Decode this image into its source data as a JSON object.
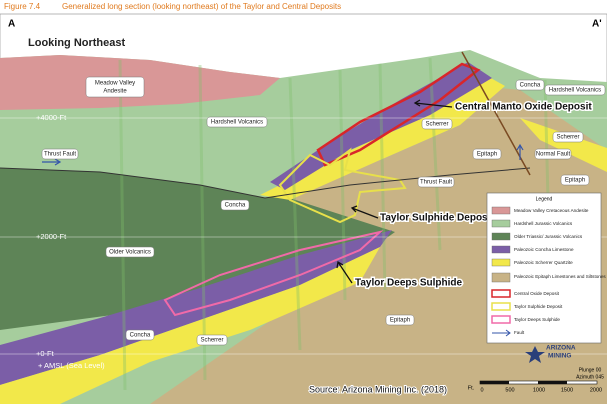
{
  "header": {
    "figure": "Figure 7.4",
    "title": "Generalized long section (looking northeast) of the Taylor and Central Deposits"
  },
  "section": {
    "corner_left": "A",
    "corner_right": "A'",
    "view": "Looking Northeast",
    "elevations": [
      "+4000-Ft",
      "+2000-Ft",
      "+0-Ft",
      "+ AMSL (Sea Level)"
    ],
    "units": [
      [
        "Meadow Valley",
        "Andesite"
      ],
      "Hardshell Volcanics",
      "Hardshell Volcanics",
      "Concha",
      "Scherrer",
      "Scherrer",
      "Normal Fault",
      "Epitaph",
      "Epitaph",
      "Thrust Fault",
      "Thrust Fault",
      "Concha",
      "Older Volcanics",
      "Concha",
      "Scherrer",
      "Epitaph"
    ],
    "deposits": [
      "Central Manto Oxide Deposit",
      "Taylor Sulphide Deposit",
      "Taylor Deeps Sulphide"
    ]
  },
  "legend": {
    "title": "Legend",
    "items": [
      "Meadow Valley Cretaceous Andesite",
      "Hardshell Jurassic Volcanics",
      "Older Triassic/ Jurassic Volcanics",
      "Paleozoic Concha Limestone",
      "Paleozoic Scherrer Quartzite",
      "Paleozoic Epitaph Limestones and Siltstones",
      "Central Oxide Deposit",
      "Taylor Sulphide Deposit",
      "Taylor Deeps Sulphide",
      "Fault"
    ]
  },
  "logo": [
    "ARIZONA",
    "MINING"
  ],
  "orientation": [
    "Plunge 00",
    "Azimuth 045"
  ],
  "scale": {
    "unit": "Ft.",
    "marks": [
      "0",
      "500",
      "1000",
      "1500",
      "2000"
    ]
  },
  "source": "Source: Arizona Mining Inc. (2018)"
}
